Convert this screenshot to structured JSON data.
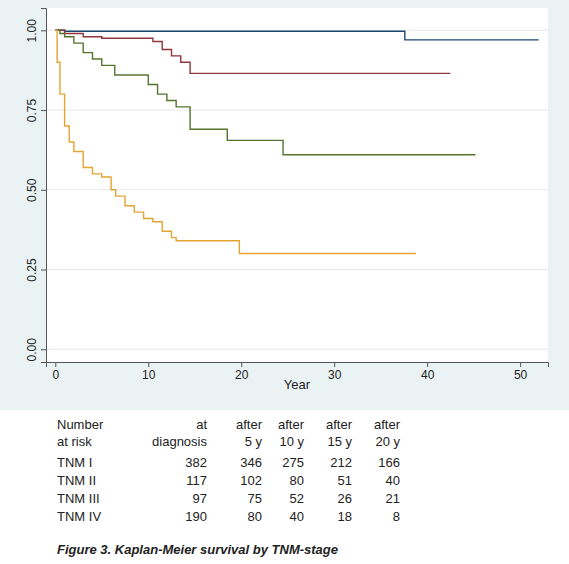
{
  "chart_data": {
    "type": "line",
    "line_style": "step",
    "title": "Figure 3. Kaplan-Meier survival by TNM-stage",
    "xlabel": "Year",
    "xlim": [
      -1,
      53
    ],
    "xticks": [
      0,
      10,
      20,
      30,
      40,
      50
    ],
    "ylim": [
      -0.04,
      1.07
    ],
    "yticks": [
      {
        "value": 0,
        "label": "0.00"
      },
      0.25,
      {
        "value": 0.5,
        "label": "0.50"
      },
      0.75,
      {
        "value": 1,
        "label": "1.00"
      }
    ],
    "grid": true,
    "series": [
      {
        "name": "TNM I",
        "color": "#1a476f",
        "x": [
          0,
          1,
          37.6,
          52
        ],
        "values": [
          1,
          0.997,
          0.97,
          0.97
        ],
        "at_risk": [
          382,
          346,
          275,
          212,
          166
        ]
      },
      {
        "name": "TNM II",
        "color": "#90353b",
        "x": [
          0,
          1,
          3,
          5,
          10.5,
          11.5,
          12.5,
          13.5,
          14.5,
          42.5
        ],
        "values": [
          1,
          0.99,
          0.98,
          0.975,
          0.965,
          0.94,
          0.92,
          0.9,
          0.865,
          0.865
        ],
        "at_risk": [
          117,
          102,
          80,
          51,
          40
        ]
      },
      {
        "name": "TNM III",
        "color": "#55752f",
        "x": [
          0,
          0.5,
          1,
          2,
          3,
          4,
          5,
          6.4,
          10,
          11,
          12,
          13,
          14.5,
          18.5,
          24.5,
          45.2
        ],
        "values": [
          1,
          0.99,
          0.98,
          0.96,
          0.93,
          0.91,
          0.89,
          0.86,
          0.83,
          0.8,
          0.78,
          0.76,
          0.69,
          0.655,
          0.61,
          0.61
        ],
        "at_risk": [
          97,
          75,
          52,
          26,
          21
        ]
      },
      {
        "name": "TNM IV",
        "color": "#e4a434",
        "x": [
          0,
          0.2,
          0.5,
          1,
          1.5,
          2,
          3,
          4,
          5,
          6,
          6.5,
          7.5,
          8.5,
          9.5,
          10.5,
          11.5,
          12.5,
          13,
          19.8,
          38.8
        ],
        "values": [
          1,
          0.9,
          0.8,
          0.7,
          0.65,
          0.62,
          0.57,
          0.55,
          0.54,
          0.5,
          0.48,
          0.45,
          0.43,
          0.41,
          0.4,
          0.37,
          0.35,
          0.34,
          0.3,
          0.3
        ],
        "at_risk": [
          190,
          80,
          40,
          18,
          8
        ]
      }
    ],
    "risk_table": {
      "header": [
        [
          "Number",
          "at",
          "after",
          "after",
          "after",
          "after"
        ],
        [
          "at risk",
          "diagnosis",
          "5 y",
          "10 y",
          "15 y",
          "20 y"
        ]
      ]
    }
  }
}
